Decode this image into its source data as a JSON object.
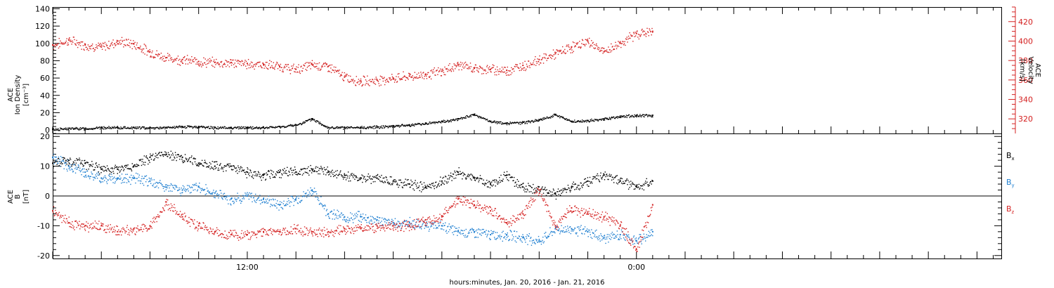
{
  "chart_data": [
    {
      "type": "scatter",
      "panel": "top",
      "ylabel": [
        "ACE",
        "Ion Density",
        "[cm⁻³]"
      ],
      "ylabel_right": [
        "ACE",
        "Velocity",
        "[km/s]"
      ],
      "ylim": [
        -4,
        142
      ],
      "yticks": [
        0,
        20,
        40,
        60,
        80,
        100,
        120,
        140
      ],
      "ylim_right": [
        305,
        435
      ],
      "yticks_right": [
        320,
        340,
        360,
        380,
        400,
        420
      ],
      "colors": {
        "density": "#000000",
        "velocity": "#d42020"
      },
      "series": [
        {
          "key": "density",
          "axis": "left",
          "hours": [
            0,
            1,
            2,
            3,
            4,
            5,
            6,
            7,
            8,
            9,
            10,
            11,
            12,
            13,
            14,
            15,
            16,
            17,
            18,
            19,
            20,
            21,
            22,
            23,
            24,
            25,
            26,
            27,
            28,
            29,
            30,
            31,
            32,
            33,
            34,
            35,
            36,
            37
          ],
          "values": [
            1,
            2,
            2,
            3,
            3,
            3,
            3,
            3,
            4,
            4,
            3,
            3,
            3,
            3,
            4,
            6,
            13,
            3,
            3,
            3,
            4,
            5,
            6,
            8,
            10,
            13,
            18,
            10,
            8,
            9,
            12,
            18,
            10,
            11,
            13,
            16,
            17,
            17
          ]
        },
        {
          "key": "velocity",
          "axis": "right",
          "hours": [
            0,
            1,
            2,
            3,
            4,
            5,
            6,
            7,
            8,
            9,
            10,
            11,
            12,
            13,
            14,
            15,
            16,
            17,
            18,
            19,
            20,
            21,
            22,
            23,
            24,
            25,
            26,
            27,
            28,
            29,
            30,
            31,
            32,
            33,
            34,
            35,
            36,
            37
          ],
          "values": [
            396,
            401,
            396,
            394,
            400,
            397,
            389,
            383,
            381,
            379,
            378,
            378,
            377,
            376,
            374,
            371,
            376,
            374,
            363,
            359,
            360,
            362,
            364,
            366,
            369,
            376,
            372,
            371,
            370,
            375,
            381,
            387,
            394,
            400,
            389,
            398,
            408,
            410
          ]
        }
      ]
    },
    {
      "type": "scatter",
      "panel": "bottom",
      "ylabel": [
        "ACE",
        "B",
        "[nT]"
      ],
      "ylim": [
        -21,
        21
      ],
      "yticks": [
        -20,
        -10,
        0,
        10,
        20
      ],
      "legend": [
        {
          "key": "bx",
          "label": "B",
          "sub": "x",
          "color": "#000000"
        },
        {
          "key": "by",
          "label": "B",
          "sub": "y",
          "color": "#1f7fd0"
        },
        {
          "key": "bz",
          "label": "B",
          "sub": "z",
          "color": "#d42020"
        }
      ],
      "series": [
        {
          "key": "bx",
          "hours": [
            0,
            1,
            2,
            3,
            4,
            5,
            6,
            7,
            8,
            9,
            10,
            11,
            12,
            13,
            14,
            15,
            16,
            17,
            18,
            19,
            20,
            21,
            22,
            23,
            24,
            25,
            26,
            27,
            28,
            29,
            30,
            31,
            32,
            33,
            34,
            35,
            36,
            37
          ],
          "values": [
            11,
            12,
            11,
            9,
            9,
            10,
            13,
            14,
            13,
            11,
            10,
            10,
            8,
            7,
            8,
            8,
            9,
            8,
            7,
            6,
            6,
            5,
            4,
            3,
            5,
            8,
            6,
            4,
            7,
            3,
            2,
            1,
            3,
            5,
            7,
            5,
            3,
            5
          ]
        },
        {
          "key": "by",
          "hours": [
            0,
            1,
            2,
            3,
            4,
            5,
            6,
            7,
            8,
            9,
            10,
            11,
            12,
            13,
            14,
            15,
            16,
            17,
            18,
            19,
            20,
            21,
            22,
            23,
            24,
            25,
            26,
            27,
            28,
            29,
            30,
            31,
            32,
            33,
            34,
            35,
            36,
            37
          ],
          "values": [
            13,
            10,
            8,
            6,
            6,
            6,
            5,
            3,
            2,
            3,
            1,
            -1,
            0,
            -1,
            -3,
            -1,
            2,
            -6,
            -7,
            -7,
            -8,
            -9,
            -9,
            -10,
            -10,
            -12,
            -12,
            -13,
            -13,
            -14,
            -15,
            -11,
            -11,
            -12,
            -14,
            -13,
            -15,
            -12
          ]
        },
        {
          "key": "bz",
          "hours": [
            0,
            1,
            2,
            3,
            4,
            5,
            6,
            7,
            8,
            9,
            10,
            11,
            12,
            13,
            14,
            15,
            16,
            17,
            18,
            19,
            20,
            21,
            22,
            23,
            24,
            25,
            26,
            27,
            28,
            29,
            30,
            31,
            32,
            33,
            34,
            35,
            36,
            37
          ],
          "values": [
            -5,
            -9,
            -10,
            -10,
            -12,
            -11,
            -10,
            -2,
            -7,
            -10,
            -12,
            -13,
            -13,
            -12,
            -12,
            -11,
            -12,
            -12,
            -11,
            -11,
            -10,
            -10,
            -10,
            -8,
            -7,
            -1,
            -3,
            -5,
            -9,
            -6,
            2,
            -10,
            -4,
            -6,
            -7,
            -10,
            -18,
            -3
          ]
        }
      ]
    }
  ],
  "xaxis": {
    "label": "hours:minutes, Jan. 20, 2016 - Jan. 21, 2016",
    "start_hour": 0,
    "end_hour": 58.5,
    "labeled_ticks": [
      {
        "hour": 12,
        "label": "12:00"
      },
      {
        "hour": 36,
        "label": "0:00"
      }
    ]
  }
}
